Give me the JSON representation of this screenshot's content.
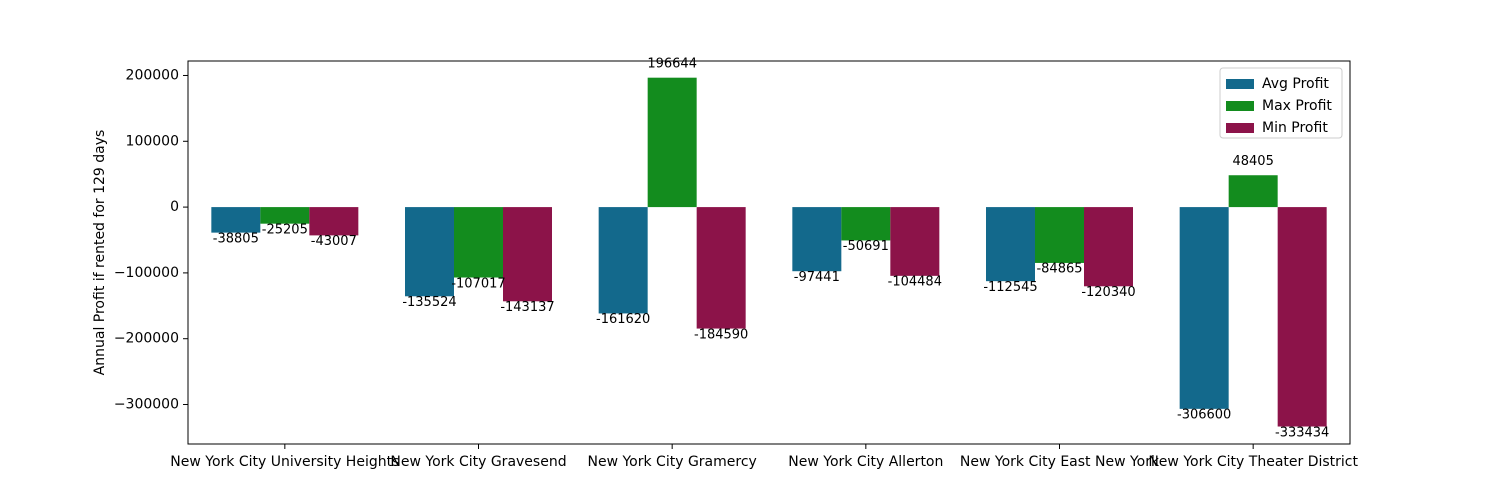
{
  "chart_data": {
    "type": "bar",
    "title": "",
    "xlabel": "",
    "ylabel": "Annual Profit if rented for 129 days",
    "categories": [
      "New York City University Heights",
      "New York City Gravesend",
      "New York City Gramercy",
      "New York City Allerton",
      "New York City East New York",
      "New York City Theater District"
    ],
    "series": [
      {
        "name": "Avg Profit",
        "color": "#13698c",
        "values": [
          -38805,
          -135524,
          -161620,
          -97441,
          -112545,
          -306600
        ]
      },
      {
        "name": "Max Profit",
        "color": "#138c1e",
        "values": [
          -25205,
          -107017,
          196644,
          -50691,
          -84865,
          48405
        ]
      },
      {
        "name": "Min Profit",
        "color": "#8c1349",
        "values": [
          -43007,
          -143137,
          -184590,
          -104484,
          -120340,
          -333434
        ]
      }
    ],
    "y_ticks": [
      200000,
      100000,
      0,
      -100000,
      -200000,
      -300000
    ],
    "y_tick_labels": [
      "200000",
      "100000",
      "0",
      "−100000",
      "−200000",
      "−300000"
    ],
    "ylim": [
      -360000,
      222000
    ],
    "legend_position": "top-right",
    "grid": false
  }
}
